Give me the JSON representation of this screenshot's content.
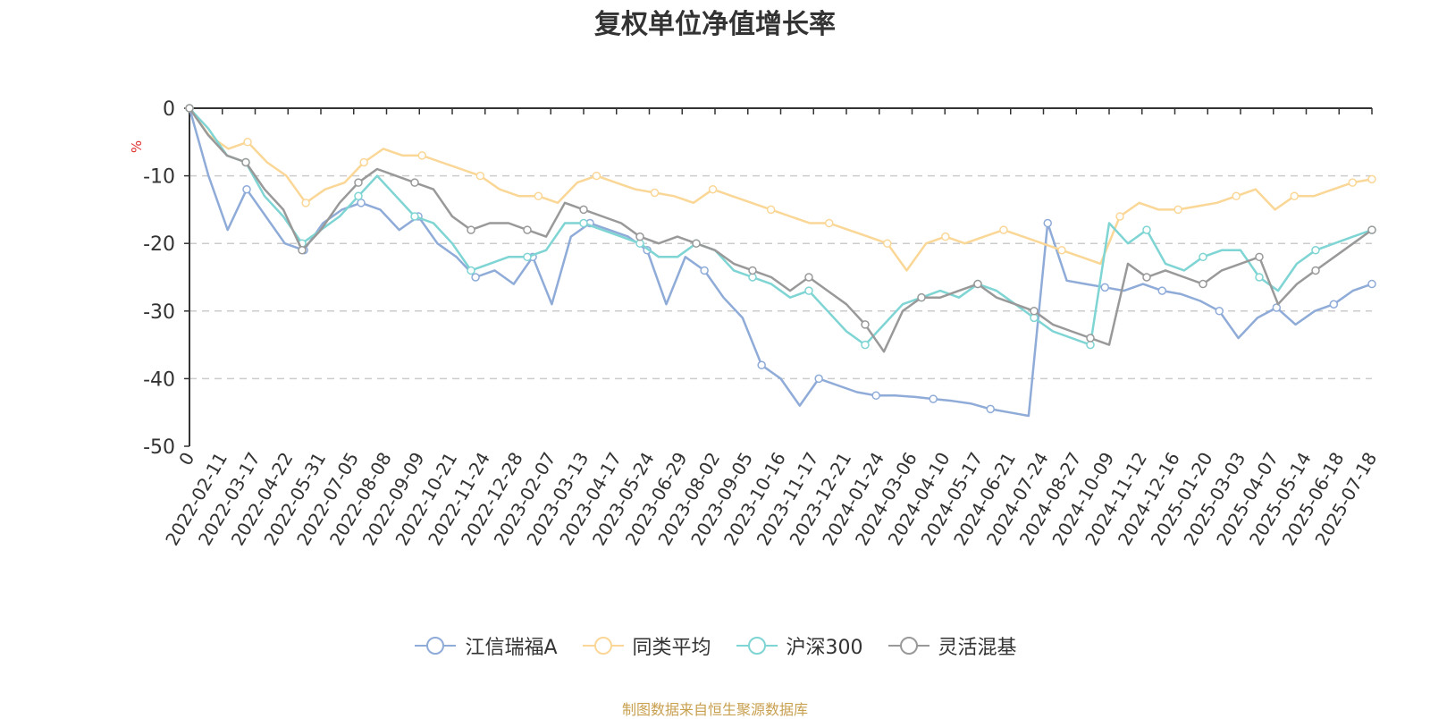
{
  "chart_data": {
    "type": "line",
    "title": "复权单位净值增长率",
    "ylabel": "%",
    "ylim": [
      -50,
      0
    ],
    "yticks": [
      0,
      -10,
      -20,
      -30,
      -40,
      -50
    ],
    "x_tick_labels": [
      "0",
      "2022-02-11",
      "2022-03-17",
      "2022-04-22",
      "2022-05-31",
      "2022-07-05",
      "2022-08-08",
      "2022-09-09",
      "2022-10-21",
      "2022-11-24",
      "2022-12-28",
      "2023-02-07",
      "2023-03-13",
      "2023-04-17",
      "2023-05-24",
      "2023-06-29",
      "2023-08-02",
      "2023-09-05",
      "2023-10-16",
      "2023-11-17",
      "2023-12-21",
      "2024-01-24",
      "2024-03-06",
      "2024-04-10",
      "2024-05-17",
      "2024-06-21",
      "2024-07-24",
      "2024-08-27",
      "2024-10-09",
      "2024-11-12",
      "2024-12-16",
      "2025-01-20",
      "2025-03-03",
      "2025-04-07",
      "2025-05-14",
      "2025-06-18",
      "2025-07-18"
    ],
    "grid": "horizontal-dashed",
    "legend_position": "bottom",
    "series": [
      {
        "name": "江信瑞福A",
        "color": "#8fabd8",
        "values": [
          0,
          -10,
          -18,
          -12,
          -16,
          -20,
          -21,
          -17,
          -15,
          -14,
          -15,
          -18,
          -16,
          -20,
          -22,
          -25,
          -24,
          -26,
          -22,
          -29,
          -19,
          -17,
          -18,
          -19,
          -21,
          -29,
          -22,
          -24,
          -28,
          -31,
          -38,
          -40,
          -44,
          -40,
          -41,
          -42,
          -42.5,
          -42.5,
          -42.7,
          -43,
          -43.3,
          -43.7,
          -44.5,
          -45,
          -45.5,
          -17,
          -25.5,
          -26,
          -26.5,
          -27,
          -26,
          -27,
          -27.5,
          -28.5,
          -30,
          -34,
          -31,
          -29.5,
          -32,
          -30,
          -29,
          -27,
          -26
        ]
      },
      {
        "name": "同类平均",
        "color": "#fad797",
        "values": [
          0,
          -4,
          -6,
          -5,
          -8,
          -10,
          -14,
          -12,
          -11,
          -8,
          -6,
          -7,
          -7,
          -8,
          -9,
          -10,
          -12,
          -13,
          -13,
          -14,
          -11,
          -10,
          -11,
          -12,
          -12.5,
          -13,
          -14,
          -12,
          -13,
          -14,
          -15,
          -16,
          -17,
          -17,
          -18,
          -19,
          -20,
          -24,
          -20,
          -19,
          -20,
          -19,
          -18,
          -19,
          -20,
          -21,
          -22,
          -23,
          -16,
          -14,
          -15,
          -15,
          -14.5,
          -14,
          -13,
          -12,
          -15,
          -13,
          -13,
          -12,
          -11,
          -10.5
        ],
        "note": "values sampled uniformly across the time axis"
      },
      {
        "name": "沪深300",
        "color": "#7fd4d4",
        "values": [
          0,
          -3,
          -7,
          -8,
          -13,
          -16,
          -20,
          -18,
          -16,
          -13,
          -10,
          -13,
          -16,
          -17,
          -20,
          -24,
          -23,
          -22,
          -22,
          -21,
          -17,
          -17,
          -18,
          -19,
          -20,
          -22,
          -22,
          -20,
          -21,
          -24,
          -25,
          -26,
          -28,
          -27,
          -30,
          -33,
          -35,
          -32,
          -29,
          -28,
          -27,
          -28,
          -26,
          -27,
          -29,
          -31,
          -33,
          -34,
          -35,
          -17,
          -20,
          -18,
          -23,
          -24,
          -22,
          -21,
          -21,
          -25,
          -27,
          -23,
          -21,
          -20,
          -19,
          -18
        ]
      },
      {
        "name": "灵活混基",
        "color": "#999999",
        "values": [
          0,
          -4,
          -7,
          -8,
          -12,
          -15,
          -21,
          -18,
          -14,
          -11,
          -9,
          -10,
          -11,
          -12,
          -16,
          -18,
          -17,
          -17,
          -18,
          -19,
          -14,
          -15,
          -16,
          -17,
          -19,
          -20,
          -19,
          -20,
          -21,
          -23,
          -24,
          -25,
          -27,
          -25,
          -27,
          -29,
          -32,
          -36,
          -30,
          -28,
          -28,
          -27,
          -26,
          -28,
          -29,
          -30,
          -32,
          -33,
          -34,
          -35,
          -23,
          -25,
          -24,
          -25,
          -26,
          -24,
          -23,
          -22,
          -29,
          -26,
          -24,
          -22,
          -20,
          -18
        ]
      }
    ]
  },
  "source_note": "制图数据来自恒生聚源数据库"
}
